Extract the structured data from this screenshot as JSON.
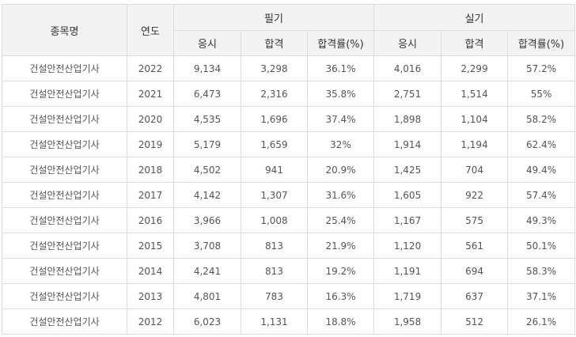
{
  "header": {
    "name": "종목명",
    "year": "연도",
    "written": "필기",
    "practical": "실기",
    "applicants": "응시",
    "passed": "합격",
    "rate": "합격률(%)"
  },
  "rows": [
    {
      "name": "건설안전산업기사",
      "year": "2022",
      "w_app": "9,134",
      "w_pass": "3,298",
      "w_rate": "36.1%",
      "p_app": "4,016",
      "p_pass": "2,299",
      "p_rate": "57.2%"
    },
    {
      "name": "건설안전산업기사",
      "year": "2021",
      "w_app": "6,473",
      "w_pass": "2,316",
      "w_rate": "35.8%",
      "p_app": "2,751",
      "p_pass": "1,514",
      "p_rate": "55%"
    },
    {
      "name": "건설안전산업기사",
      "year": "2020",
      "w_app": "4,535",
      "w_pass": "1,696",
      "w_rate": "37.4%",
      "p_app": "1,898",
      "p_pass": "1,104",
      "p_rate": "58.2%"
    },
    {
      "name": "건설안전산업기사",
      "year": "2019",
      "w_app": "5,179",
      "w_pass": "1,659",
      "w_rate": "32%",
      "p_app": "1,914",
      "p_pass": "1,194",
      "p_rate": "62.4%"
    },
    {
      "name": "건설안전산업기사",
      "year": "2018",
      "w_app": "4,502",
      "w_pass": "941",
      "w_rate": "20.9%",
      "p_app": "1,425",
      "p_pass": "704",
      "p_rate": "49.4%"
    },
    {
      "name": "건설안전산업기사",
      "year": "2017",
      "w_app": "4,142",
      "w_pass": "1,307",
      "w_rate": "31.6%",
      "p_app": "1,605",
      "p_pass": "922",
      "p_rate": "57.4%"
    },
    {
      "name": "건설안전산업기사",
      "year": "2016",
      "w_app": "3,966",
      "w_pass": "1,008",
      "w_rate": "25.4%",
      "p_app": "1,167",
      "p_pass": "575",
      "p_rate": "49.3%"
    },
    {
      "name": "건설안전산업기사",
      "year": "2015",
      "w_app": "3,708",
      "w_pass": "813",
      "w_rate": "21.9%",
      "p_app": "1,120",
      "p_pass": "561",
      "p_rate": "50.1%"
    },
    {
      "name": "건설안전산업기사",
      "year": "2014",
      "w_app": "4,241",
      "w_pass": "813",
      "w_rate": "19.2%",
      "p_app": "1,191",
      "p_pass": "694",
      "p_rate": "58.3%"
    },
    {
      "name": "건설안전산업기사",
      "year": "2013",
      "w_app": "4,801",
      "w_pass": "783",
      "w_rate": "16.3%",
      "p_app": "1,719",
      "p_pass": "637",
      "p_rate": "37.1%"
    },
    {
      "name": "건설안전산업기사",
      "year": "2012",
      "w_app": "6,023",
      "w_pass": "1,131",
      "w_rate": "18.8%",
      "p_app": "1,958",
      "p_pass": "512",
      "p_rate": "26.1%"
    }
  ]
}
